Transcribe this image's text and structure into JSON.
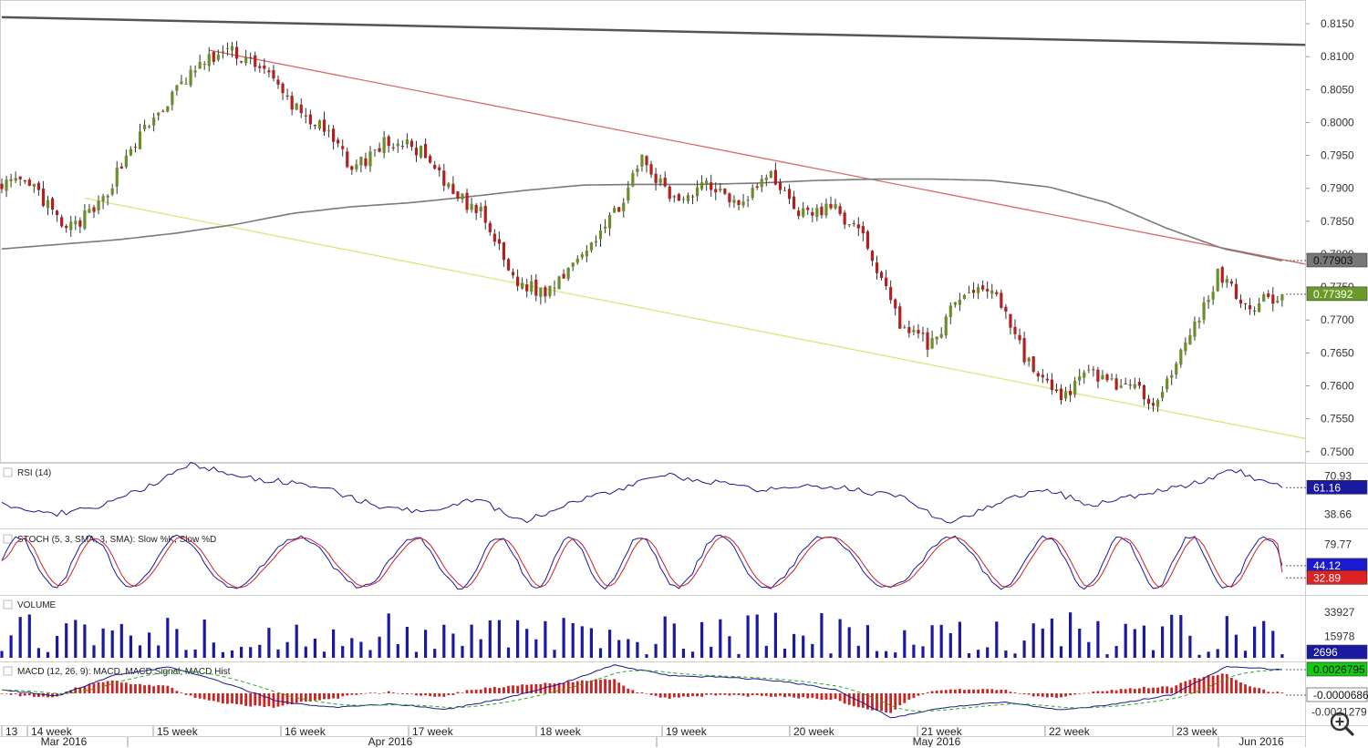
{
  "colors": {
    "bull": "#6a8f2a",
    "bear": "#b32020",
    "wick": "#333333",
    "ma": "#7a7a7a",
    "long_trend": "#555555",
    "resistance": "#d96a6a",
    "support": "#d9e67a",
    "rsi": "#1a1a8c",
    "stoch_k": "#1a1aa0",
    "stoch_d": "#cc2222",
    "volume": "#1a1aa0",
    "macd": "#1a1a8c",
    "signal": "#22aa22",
    "hist": "#cc2222",
    "badge_grey": "#777777",
    "badge_green": "#6a9a2a",
    "badge_blue": "#1a1ad0",
    "badge_red": "#dd2222",
    "badge_lime": "#11cc11",
    "badge_navy": "#1a1aa0"
  },
  "icons": {
    "zoom": "zoom-magnifier-icon"
  },
  "chart_data": [
    {
      "type": "candlestick",
      "ylim": [
        0.749,
        0.8175
      ],
      "yticks": [
        "0.8150",
        "0.8100",
        "0.8050",
        "0.8000",
        "0.7950",
        "0.7900",
        "0.7850",
        "0.7800",
        "0.7750",
        "0.7700",
        "0.7650",
        "0.7600",
        "0.7550",
        "0.7500"
      ],
      "key_closes": [
        0.791,
        0.79,
        0.7835,
        0.787,
        0.796,
        0.802,
        0.808,
        0.811,
        0.809,
        0.803,
        0.799,
        0.793,
        0.797,
        0.796,
        0.7895,
        0.786,
        0.776,
        0.774,
        0.78,
        0.785,
        0.794,
        0.788,
        0.791,
        0.788,
        0.792,
        0.786,
        0.787,
        0.782,
        0.77,
        0.766,
        0.774,
        0.775,
        0.764,
        0.758,
        0.762,
        0.76,
        0.758,
        0.766,
        0.777,
        0.772,
        0.7739
      ],
      "price_badges": [
        {
          "label": "0.77903",
          "value": 0.77903
        },
        {
          "label": "0.77392",
          "value": 0.77392
        }
      ]
    },
    {
      "type": "line",
      "title": "RSI (14)",
      "ylim": [
        28,
        80
      ],
      "yticks": [
        "70.93",
        "38.66"
      ],
      "key_values": [
        48,
        38,
        45,
        60,
        82,
        70,
        66,
        58,
        44,
        40,
        52,
        32,
        48,
        60,
        72,
        66,
        58,
        64,
        60,
        52,
        30,
        48,
        60,
        46,
        55,
        63,
        76,
        61
      ],
      "current": "61.16"
    },
    {
      "type": "line",
      "title": "STOCH (5, 3, SMA, 3, SMA): Slow %K, Slow %D",
      "ylim": [
        0,
        100
      ],
      "yticks": [
        "79.77"
      ],
      "current_k": "44.12",
      "current_d": "32.89"
    },
    {
      "type": "bar",
      "title": "VOLUME",
      "ylim": [
        0,
        45000
      ],
      "yticks": [
        "33927",
        "15978"
      ],
      "current": "2696"
    },
    {
      "type": "line",
      "title": "MACD (12, 26, 9): MACD, MACD Signal, MACD Hist",
      "ylim": [
        -0.0034,
        0.0034
      ],
      "key_macd": [
        0.0004,
        -0.0003,
        0.002,
        0.003,
        0.0012,
        -0.001,
        -0.0016,
        -0.0012,
        -0.0018,
        -0.0006,
        0.001,
        0.0032,
        0.002,
        0.0018,
        0.0014,
        0.0004,
        -0.0028,
        -0.0015,
        -0.001,
        -0.0019,
        -0.0012,
        -0.0002,
        0.003,
        0.00268
      ],
      "yticks": [
        "-0.0021279"
      ],
      "current_macd": "0.0026795",
      "current_signal": "-0.0000686"
    }
  ],
  "x_axis": {
    "week_labels": [
      "13",
      "14 week",
      "15 week",
      "16 week",
      "17 week",
      "18 week",
      "19 week",
      "20 week",
      "21 week",
      "22 week",
      "23 week"
    ],
    "month_labels": [
      "Mar 2016",
      "Apr 2016",
      "May 2016",
      "Jun 2016"
    ]
  }
}
